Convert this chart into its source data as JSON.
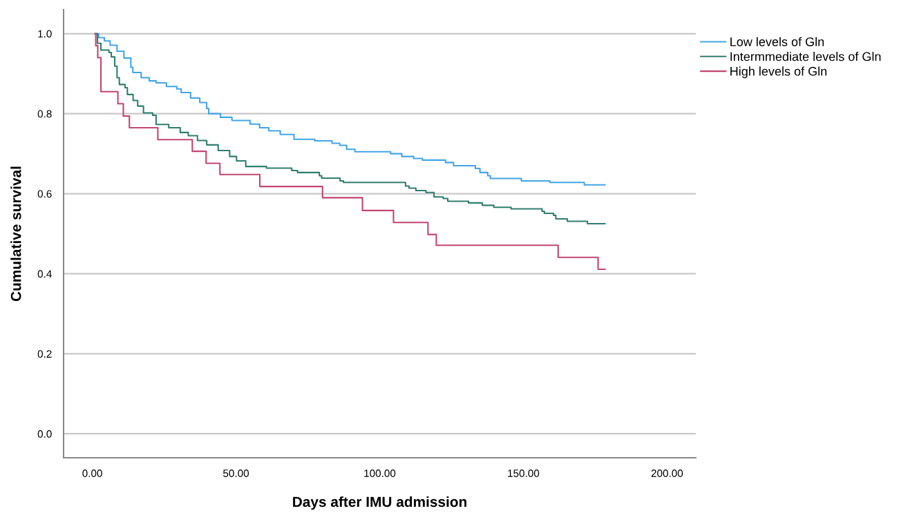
{
  "chart_data": {
    "type": "step",
    "xlabel": "Days after IMU admission",
    "ylabel": "Cumulative survival",
    "xlim": [
      -10,
      210
    ],
    "ylim": [
      -0.06,
      1.06
    ],
    "xticks": [
      {
        "value": 0,
        "label": "0.00"
      },
      {
        "value": 50,
        "label": "50.00"
      },
      {
        "value": 100,
        "label": "100.00"
      },
      {
        "value": 150,
        "label": "150.00"
      },
      {
        "value": 200,
        "label": "200.00"
      }
    ],
    "yticks": [
      {
        "value": 0,
        "label": "0.0"
      },
      {
        "value": 0.2,
        "label": "0.2"
      },
      {
        "value": 0.4,
        "label": "0.4"
      },
      {
        "value": 0.6,
        "label": "0.6"
      },
      {
        "value": 0.8,
        "label": "0.8"
      },
      {
        "value": 1.0,
        "label": "1.0"
      }
    ],
    "grid": "y",
    "legend": "top right",
    "series": [
      {
        "name": "Low levels of Gln",
        "color": "#42a5e8",
        "x": [
          1.0,
          2.2,
          4.2,
          6.2,
          8.6,
          11.0,
          13.4,
          14.1,
          17.0,
          19.8,
          22.2,
          25.8,
          29.4,
          30.9,
          34.2,
          37.4,
          39.8,
          40.5,
          44.6,
          48.6,
          54.9,
          58.2,
          61.4,
          65.4,
          70.2,
          77.4,
          83.4,
          86.1,
          88.5,
          91.4,
          103.8,
          107.7,
          111.8,
          114.9,
          122.9,
          125.7,
          133.3,
          134.9,
          137.6,
          138.5,
          149.3,
          159.2,
          171.2,
          178.4
        ],
        "values": [
          1.0,
          0.99,
          0.982,
          0.971,
          0.956,
          0.939,
          0.916,
          0.903,
          0.89,
          0.882,
          0.877,
          0.868,
          0.862,
          0.853,
          0.839,
          0.828,
          0.813,
          0.8,
          0.791,
          0.783,
          0.774,
          0.765,
          0.757,
          0.748,
          0.736,
          0.732,
          0.726,
          0.721,
          0.711,
          0.705,
          0.7,
          0.693,
          0.688,
          0.684,
          0.678,
          0.67,
          0.663,
          0.653,
          0.645,
          0.638,
          0.632,
          0.628,
          0.622,
          0.622
        ]
      },
      {
        "name": "Intermmediate levels of Gln",
        "color": "#2f7d70",
        "x": [
          1.0,
          1.8,
          3.0,
          5.8,
          6.6,
          7.8,
          8.6,
          9.4,
          11.4,
          12.2,
          14.2,
          15.8,
          17.8,
          21.0,
          22.2,
          26.6,
          30.6,
          33.4,
          36.6,
          39.8,
          43.8,
          47.8,
          50.2,
          53.4,
          60.6,
          69.4,
          71.4,
          79.0,
          79.8,
          86.2,
          87.4,
          109.0,
          110.2,
          112.6,
          116.1,
          118.9,
          122.1,
          123.7,
          130.9,
          135.7,
          139.7,
          145.7,
          156.5,
          157.3,
          160.5,
          161.3,
          165.3,
          172.3,
          178.4
        ],
        "values": [
          1.0,
          0.976,
          0.959,
          0.953,
          0.942,
          0.919,
          0.89,
          0.873,
          0.865,
          0.848,
          0.833,
          0.819,
          0.802,
          0.796,
          0.773,
          0.765,
          0.753,
          0.745,
          0.733,
          0.722,
          0.708,
          0.693,
          0.682,
          0.668,
          0.664,
          0.658,
          0.653,
          0.645,
          0.639,
          0.632,
          0.628,
          0.619,
          0.614,
          0.608,
          0.603,
          0.592,
          0.588,
          0.581,
          0.577,
          0.571,
          0.566,
          0.562,
          0.556,
          0.551,
          0.546,
          0.537,
          0.531,
          0.525,
          0.525
        ]
      },
      {
        "name": "High levels of Gln",
        "color": "#c2446f",
        "x": [
          1.0,
          1.2,
          1.9,
          3.0,
          8.9,
          10.8,
          12.9,
          22.8,
          34.8,
          39.6,
          44.4,
          58.3,
          80.1,
          94.0,
          104.8,
          116.8,
          119.7,
          162.1,
          176.0,
          178.4
        ],
        "values": [
          1.0,
          0.97,
          0.94,
          0.855,
          0.825,
          0.794,
          0.765,
          0.735,
          0.706,
          0.676,
          0.648,
          0.618,
          0.59,
          0.558,
          0.528,
          0.498,
          0.471,
          0.441,
          0.411,
          0.411
        ]
      }
    ]
  }
}
